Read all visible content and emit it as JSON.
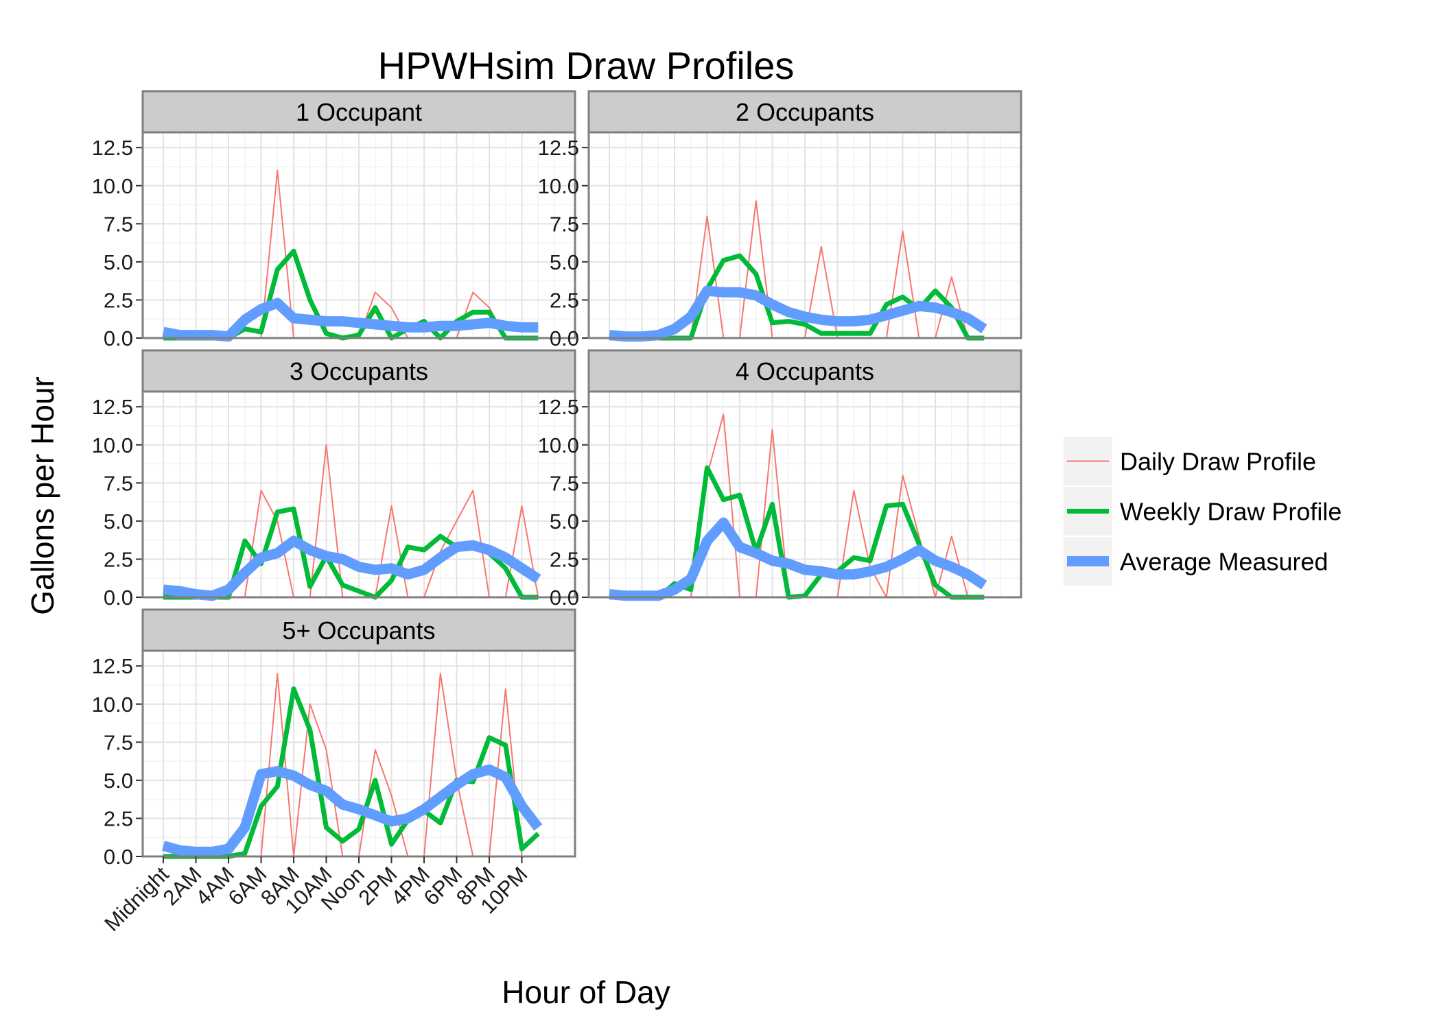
{
  "chart_data": {
    "type": "line",
    "title": "HPWHsim Draw Profiles",
    "xlabel": "Hour of Day",
    "ylabel": "Gallons per Hour",
    "ylim": [
      0,
      13.5
    ],
    "xlim": [
      0,
      24
    ],
    "yticks": [
      0.0,
      2.5,
      5.0,
      7.5,
      10.0,
      12.5
    ],
    "ytick_labels": [
      "0.0",
      "2.5",
      "5.0",
      "7.5",
      "10.0",
      "12.5"
    ],
    "xticks": [
      0,
      2,
      4,
      6,
      8,
      10,
      12,
      14,
      16,
      18,
      20,
      22
    ],
    "xtick_labels": [
      "Midnight",
      "2AM",
      "4AM",
      "6AM",
      "8AM",
      "10AM",
      "Noon",
      "2PM",
      "4PM",
      "6PM",
      "8PM",
      "10PM"
    ],
    "grid": true,
    "legend_position": "right",
    "legend": [
      {
        "name": "Daily Draw Profile",
        "color": "#F8766D"
      },
      {
        "name": "Weekly Draw Profile",
        "color": "#00BA38"
      },
      {
        "name": "Average Measured",
        "color": "#619CFF"
      }
    ],
    "x": [
      0,
      1,
      2,
      3,
      4,
      5,
      6,
      7,
      8,
      9,
      10,
      11,
      12,
      13,
      14,
      15,
      16,
      17,
      18,
      19,
      20,
      21,
      22,
      23
    ],
    "panels": [
      {
        "label": "1 Occupant",
        "series": [
          {
            "name": "Daily Draw Profile",
            "values": [
              0,
              0,
              0,
              0,
              0,
              0,
              0,
              11,
              0,
              0,
              0,
              0,
              0,
              3,
              2,
              0,
              0,
              0,
              0,
              3,
              2,
              0,
              0,
              0
            ]
          },
          {
            "name": "Weekly Draw Profile",
            "values": [
              0,
              0,
              0,
              0,
              0,
              0.6,
              0.4,
              4.5,
              5.7,
              2.5,
              0.3,
              0,
              0.2,
              2.0,
              0,
              0.6,
              1.1,
              0,
              1.1,
              1.7,
              1.7,
              0,
              0,
              0
            ]
          },
          {
            "name": "Average Measured",
            "values": [
              0.4,
              0.2,
              0.2,
              0.2,
              0.1,
              1.2,
              1.9,
              2.3,
              1.3,
              1.2,
              1.1,
              1.1,
              1.0,
              0.9,
              0.8,
              0.7,
              0.7,
              0.8,
              0.8,
              0.9,
              1.0,
              0.8,
              0.7,
              0.7
            ]
          }
        ]
      },
      {
        "label": "2 Occupants",
        "series": [
          {
            "name": "Daily Draw Profile",
            "values": [
              0,
              0,
              0,
              0,
              0,
              0,
              8,
              0,
              0,
              9,
              0,
              0,
              0,
              6,
              0,
              0,
              0,
              0,
              7,
              0,
              0,
              4,
              0,
              0
            ]
          },
          {
            "name": "Weekly Draw Profile",
            "values": [
              0,
              0,
              0,
              0,
              0,
              0,
              3.2,
              5.1,
              5.4,
              4.2,
              1.0,
              1.1,
              0.9,
              0.3,
              0.3,
              0.3,
              0.3,
              2.2,
              2.7,
              1.9,
              3.1,
              2.0,
              0,
              0
            ]
          },
          {
            "name": "Average Measured",
            "values": [
              0.2,
              0.1,
              0.1,
              0.2,
              0.6,
              1.4,
              3.1,
              3.0,
              3.0,
              2.8,
              2.2,
              1.7,
              1.4,
              1.2,
              1.1,
              1.1,
              1.2,
              1.5,
              1.8,
              2.1,
              2.0,
              1.7,
              1.3,
              0.6
            ]
          }
        ]
      },
      {
        "label": "3 Occupants",
        "series": [
          {
            "name": "Daily Draw Profile",
            "values": [
              0,
              0,
              0,
              0,
              0,
              0,
              7,
              5,
              0,
              0,
              10,
              0,
              0,
              0,
              6,
              0,
              0,
              3,
              5,
              7,
              0,
              0,
              6,
              0
            ]
          },
          {
            "name": "Weekly Draw Profile",
            "values": [
              0,
              0,
              0,
              0,
              0,
              3.7,
              2.2,
              5.6,
              5.8,
              0.7,
              2.7,
              0.8,
              0.4,
              0,
              1.1,
              3.3,
              3.1,
              4.0,
              3.3,
              3.3,
              2.9,
              1.9,
              0,
              0
            ]
          },
          {
            "name": "Average Measured",
            "values": [
              0.5,
              0.4,
              0.2,
              0.1,
              0.5,
              1.6,
              2.6,
              2.9,
              3.7,
              3.1,
              2.7,
              2.5,
              2.0,
              1.8,
              1.9,
              1.5,
              1.8,
              2.6,
              3.3,
              3.4,
              3.1,
              2.6,
              1.9,
              1.2
            ]
          }
        ]
      },
      {
        "label": "4 Occupants",
        "series": [
          {
            "name": "Daily Draw Profile",
            "values": [
              0,
              0,
              0,
              0,
              0,
              0,
              8,
              12,
              0,
              0,
              11,
              0,
              0,
              0,
              0,
              7,
              2,
              0,
              8,
              4,
              0,
              4,
              0,
              0
            ]
          },
          {
            "name": "Weekly Draw Profile",
            "values": [
              0,
              0,
              0,
              0,
              0.9,
              0.5,
              8.5,
              6.4,
              6.7,
              3.0,
              6.1,
              0,
              0.1,
              1.5,
              1.7,
              2.6,
              2.4,
              6.0,
              6.1,
              3.5,
              0.8,
              0,
              0,
              0
            ]
          },
          {
            "name": "Average Measured",
            "values": [
              0.2,
              0.1,
              0.1,
              0.1,
              0.5,
              1.2,
              3.7,
              4.9,
              3.3,
              2.9,
              2.4,
              2.2,
              1.8,
              1.7,
              1.5,
              1.5,
              1.7,
              2.0,
              2.5,
              3.1,
              2.4,
              2.0,
              1.5,
              0.8
            ]
          }
        ]
      },
      {
        "label": "5+ Occupants",
        "series": [
          {
            "name": "Daily Draw Profile",
            "values": [
              0,
              0,
              0,
              0,
              0,
              0,
              0,
              12,
              0,
              10,
              7,
              0,
              0,
              7,
              4,
              0,
              0,
              12,
              5,
              0,
              0,
              11,
              0,
              0
            ]
          },
          {
            "name": "Weekly Draw Profile",
            "values": [
              0,
              0,
              0,
              0,
              0,
              0.2,
              3.3,
              4.6,
              11.0,
              8.3,
              1.9,
              1.0,
              1.8,
              5.0,
              0.8,
              2.4,
              3.0,
              2.2,
              5.0,
              4.9,
              7.8,
              7.3,
              0.5,
              1.5
            ]
          },
          {
            "name": "Average Measured",
            "values": [
              0.7,
              0.4,
              0.3,
              0.3,
              0.5,
              1.9,
              5.4,
              5.6,
              5.3,
              4.7,
              4.3,
              3.4,
              3.1,
              2.7,
              2.3,
              2.5,
              3.1,
              3.9,
              4.7,
              5.4,
              5.7,
              5.2,
              3.3,
              1.9
            ]
          }
        ]
      }
    ]
  }
}
